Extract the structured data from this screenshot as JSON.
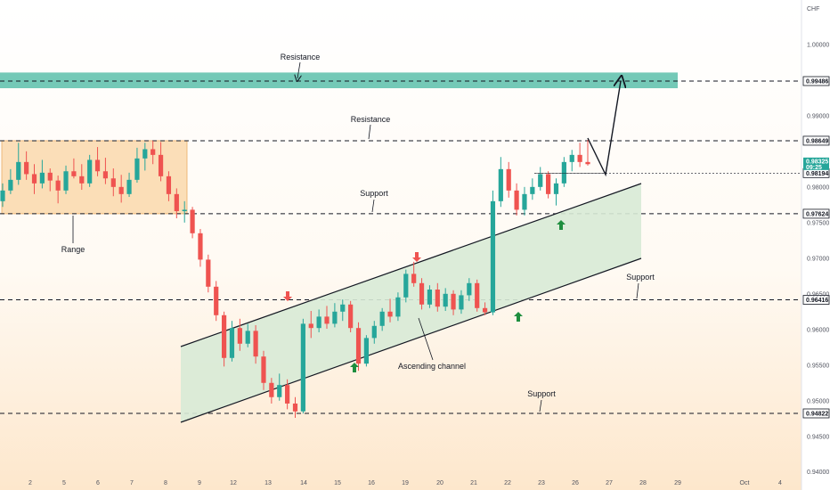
{
  "chart_data": {
    "type": "candlestick",
    "currency": "CHF",
    "ylim": [
      0.94,
      1.005
    ],
    "y_ticks": [
      "1.00000",
      "0.99000",
      "0.98000",
      "0.97500",
      "0.97000",
      "0.96500",
      "0.96000",
      "0.95500",
      "0.95000",
      "0.94500",
      "0.94000"
    ],
    "x_ticks": [
      "2",
      "5",
      "6",
      "7",
      "8",
      "9",
      "12",
      "13",
      "14",
      "15",
      "16",
      "19",
      "20",
      "21",
      "22",
      "23",
      "26",
      "27",
      "28",
      "29",
      "Oct",
      "4"
    ],
    "levels": [
      {
        "value": 0.99486,
        "label": "0.99486"
      },
      {
        "value": 0.98649,
        "label": "0.98649"
      },
      {
        "value": 0.98194,
        "label": "0.98194"
      },
      {
        "value": 0.97624,
        "label": "0.97624"
      },
      {
        "value": 0.96416,
        "label": "0.96416"
      },
      {
        "value": 0.94822,
        "label": "0.94822"
      }
    ],
    "current_price": {
      "value": "0.98325",
      "countdown": "09:25"
    },
    "annotations": [
      {
        "text": "Resistance",
        "level": 0.99486
      },
      {
        "text": "Resistance",
        "level": 0.98649
      },
      {
        "text": "Support",
        "level": 0.97624
      },
      {
        "text": "Range"
      },
      {
        "text": "Support",
        "level": 0.96416
      },
      {
        "text": "Ascending channel"
      },
      {
        "text": "Support",
        "level": 0.94822
      }
    ],
    "zones": [
      {
        "name": "resistance-zone",
        "from": 0.99386,
        "to": 0.99606,
        "color": "#5cbfaa"
      },
      {
        "name": "range-zone",
        "from": 0.97624,
        "to": 0.98649,
        "color": "#fbd9ad"
      },
      {
        "name": "ascending-channel",
        "color": "#d8ead6"
      }
    ],
    "candles": [
      [
        0.978,
        0.9805,
        0.9772,
        0.9795
      ],
      [
        0.9795,
        0.9825,
        0.979,
        0.981
      ],
      [
        0.981,
        0.9862,
        0.9803,
        0.9835
      ],
      [
        0.9835,
        0.985,
        0.981,
        0.9818
      ],
      [
        0.9818,
        0.9832,
        0.979,
        0.9805
      ],
      [
        0.9805,
        0.9838,
        0.9798,
        0.982
      ],
      [
        0.982,
        0.9826,
        0.9794,
        0.9809
      ],
      [
        0.9809,
        0.9816,
        0.9777,
        0.9795
      ],
      [
        0.9795,
        0.983,
        0.979,
        0.9822
      ],
      [
        0.9822,
        0.984,
        0.9812,
        0.9815
      ],
      [
        0.9815,
        0.9832,
        0.9796,
        0.9805
      ],
      [
        0.9805,
        0.9845,
        0.98,
        0.9838
      ],
      [
        0.9838,
        0.9856,
        0.9815,
        0.9822
      ],
      [
        0.9822,
        0.9841,
        0.9804,
        0.9812
      ],
      [
        0.9812,
        0.9826,
        0.9787,
        0.98
      ],
      [
        0.98,
        0.9817,
        0.9778,
        0.979
      ],
      [
        0.979,
        0.982,
        0.9786,
        0.981
      ],
      [
        0.981,
        0.9855,
        0.9806,
        0.984
      ],
      [
        0.984,
        0.9862,
        0.9823,
        0.9853
      ],
      [
        0.9853,
        0.9865,
        0.9832,
        0.9845
      ],
      [
        0.9845,
        0.9863,
        0.9808,
        0.9815
      ],
      [
        0.9815,
        0.9822,
        0.978,
        0.979
      ],
      [
        0.979,
        0.9798,
        0.9756,
        0.9766
      ],
      [
        0.9766,
        0.978,
        0.975,
        0.9768
      ],
      [
        0.9768,
        0.9772,
        0.9728,
        0.9735
      ],
      [
        0.9735,
        0.9741,
        0.9688,
        0.9698
      ],
      [
        0.9698,
        0.9705,
        0.9652,
        0.966
      ],
      [
        0.966,
        0.9668,
        0.9612,
        0.962
      ],
      [
        0.962,
        0.9625,
        0.9548,
        0.956
      ],
      [
        0.956,
        0.9612,
        0.9555,
        0.9602
      ],
      [
        0.9602,
        0.9615,
        0.957,
        0.958
      ],
      [
        0.958,
        0.9608,
        0.9575,
        0.9598
      ],
      [
        0.9598,
        0.9606,
        0.9552,
        0.9562
      ],
      [
        0.9562,
        0.957,
        0.9515,
        0.9525
      ],
      [
        0.9525,
        0.9532,
        0.9496,
        0.9505
      ],
      [
        0.9505,
        0.9538,
        0.95,
        0.9522
      ],
      [
        0.9522,
        0.953,
        0.9488,
        0.9496
      ],
      [
        0.9496,
        0.9505,
        0.9476,
        0.9485
      ],
      [
        0.9485,
        0.9615,
        0.9482,
        0.9608
      ],
      [
        0.9608,
        0.9626,
        0.9588,
        0.9602
      ],
      [
        0.9602,
        0.9628,
        0.9596,
        0.9618
      ],
      [
        0.9618,
        0.9633,
        0.9601,
        0.9608
      ],
      [
        0.9608,
        0.9637,
        0.9603,
        0.9625
      ],
      [
        0.9625,
        0.9642,
        0.9612,
        0.9635
      ],
      [
        0.9635,
        0.964,
        0.9596,
        0.9602
      ],
      [
        0.9602,
        0.961,
        0.9542,
        0.9552
      ],
      [
        0.9552,
        0.9592,
        0.9548,
        0.9588
      ],
      [
        0.9588,
        0.9612,
        0.958,
        0.9605
      ],
      [
        0.9605,
        0.963,
        0.9598,
        0.9625
      ],
      [
        0.9625,
        0.9643,
        0.961,
        0.9618
      ],
      [
        0.9618,
        0.9652,
        0.9612,
        0.9645
      ],
      [
        0.9645,
        0.9684,
        0.9638,
        0.9678
      ],
      [
        0.9678,
        0.9695,
        0.966,
        0.9665
      ],
      [
        0.9665,
        0.9672,
        0.9628,
        0.9635
      ],
      [
        0.9635,
        0.9662,
        0.963,
        0.9656
      ],
      [
        0.9656,
        0.9665,
        0.9625,
        0.9632
      ],
      [
        0.9632,
        0.9658,
        0.9626,
        0.965
      ],
      [
        0.965,
        0.9655,
        0.962,
        0.9628
      ],
      [
        0.9628,
        0.9655,
        0.9622,
        0.9648
      ],
      [
        0.9648,
        0.9672,
        0.964,
        0.9665
      ],
      [
        0.9665,
        0.967,
        0.9625,
        0.963
      ],
      [
        0.963,
        0.9638,
        0.962,
        0.9624
      ],
      [
        0.9624,
        0.9795,
        0.962,
        0.978
      ],
      [
        0.978,
        0.9842,
        0.9772,
        0.9825
      ],
      [
        0.9825,
        0.9835,
        0.9785,
        0.9795
      ],
      [
        0.9795,
        0.9805,
        0.976,
        0.9768
      ],
      [
        0.9768,
        0.98,
        0.976,
        0.979
      ],
      [
        0.979,
        0.9812,
        0.9782,
        0.98
      ],
      [
        0.98,
        0.9828,
        0.9795,
        0.9818
      ],
      [
        0.9818,
        0.9822,
        0.9784,
        0.979
      ],
      [
        0.979,
        0.9812,
        0.9774,
        0.9805
      ],
      [
        0.9805,
        0.9842,
        0.98,
        0.9835
      ],
      [
        0.9835,
        0.9852,
        0.9822,
        0.9845
      ],
      [
        0.9845,
        0.9862,
        0.9828,
        0.9835
      ],
      [
        0.9835,
        0.9866,
        0.983,
        0.9832
      ]
    ],
    "grid": false
  }
}
